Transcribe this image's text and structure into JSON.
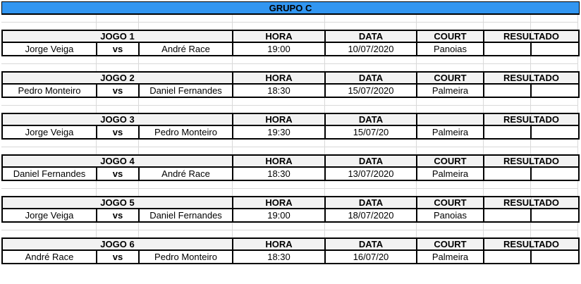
{
  "title": "GRUPO C",
  "colors": {
    "title_bg": "#3296F1",
    "header_bg": "#F2F2F2",
    "border": "#000000",
    "gridline": "#D9D9D9"
  },
  "games": [
    {
      "jogo": "JOGO 1",
      "hora_header": "HORA",
      "data_header": "DATA",
      "court_header": "COURT",
      "resultado_header": "RESULTADO",
      "player1": "Jorge Veiga",
      "vs": "vs",
      "player2": "André Race",
      "hora": "19:00",
      "data": "10/07/2020",
      "court": "Panoias",
      "resultado1": "",
      "resultado2": ""
    },
    {
      "jogo": "JOGO 2",
      "hora_header": "HORA",
      "data_header": "DATA",
      "court_header": "COURT",
      "resultado_header": "RESULTADO",
      "player1": "Pedro Monteiro",
      "vs": "vs",
      "player2": "Daniel Fernandes",
      "hora": "18:30",
      "data": "15/07/2020",
      "court": "Palmeira",
      "resultado1": "",
      "resultado2": ""
    },
    {
      "jogo": "JOGO 3",
      "hora_header": "HORA",
      "data_header": "DATA",
      "court_header": "",
      "resultado_header": "RESULTADO",
      "player1": "Jorge Veiga",
      "vs": "vs",
      "player2": "Pedro Monteiro",
      "hora": "19:30",
      "data": "15/07/20",
      "court": "Palmeira",
      "resultado1": "",
      "resultado2": ""
    },
    {
      "jogo": "JOGO 4",
      "hora_header": "HORA",
      "data_header": "DATA",
      "court_header": "COURT",
      "resultado_header": "RESULTADO",
      "player1": "Daniel Fernandes",
      "vs": "vs",
      "player2": "André Race",
      "hora": "18:30",
      "data": "13/07/2020",
      "court": "Palmeira",
      "resultado1": "",
      "resultado2": ""
    },
    {
      "jogo": "JOGO 5",
      "hora_header": "HORA",
      "data_header": "DATA",
      "court_header": "COURT",
      "resultado_header": "RESULTADO",
      "player1": "Jorge Veiga",
      "vs": "vs",
      "player2": "Daniel Fernandes",
      "hora": "19:00",
      "data": "18/07/2020",
      "court": "Panoias",
      "resultado1": "",
      "resultado2": ""
    },
    {
      "jogo": "JOGO 6",
      "hora_header": "HORA",
      "data_header": "DATA",
      "court_header": "COURT",
      "resultado_header": "RESULTADO",
      "player1": "André Race",
      "vs": "vs",
      "player2": "Pedro Monteiro",
      "hora": "18:30",
      "data": "16/07/20",
      "court": "Palmeira",
      "resultado1": "",
      "resultado2": ""
    }
  ]
}
